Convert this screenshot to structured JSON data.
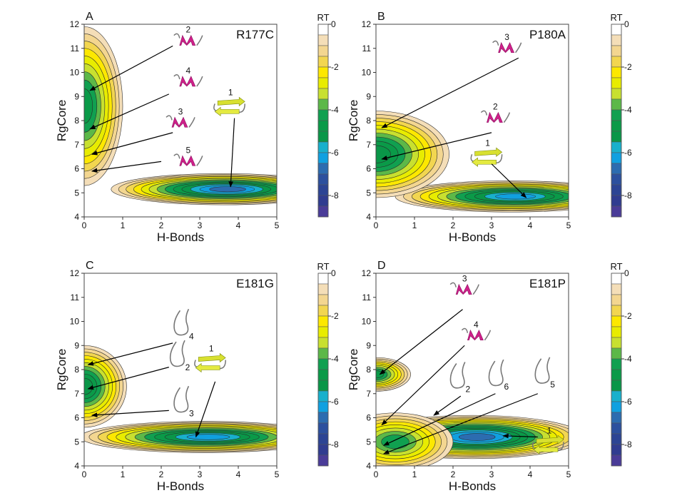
{
  "colorbar": {
    "title": "RT",
    "ticks": [
      0,
      -2,
      -4,
      -6,
      -8
    ],
    "tick_labels": [
      "0",
      "-2",
      "-4",
      "-6",
      "-8"
    ],
    "range": [
      0,
      -9
    ],
    "step": 0.5,
    "colors": [
      "#ffffff",
      "#f4deb8",
      "#f3d690",
      "#f2d650",
      "#fde800",
      "#e8ec00",
      "#c8e030",
      "#5cb848",
      "#10a050",
      "#0a9a48",
      "#0a9648",
      "#18b0cc",
      "#10a0e0",
      "#2c6cb0",
      "#2c509e",
      "#2c4494",
      "#303c90",
      "#4a3c98"
    ]
  },
  "chart_data": [
    {
      "type": "heatmap",
      "panel_letter": "A",
      "title": "R177C",
      "xlabel": "H-Bonds",
      "ylabel": "RgCore",
      "xlim": [
        0,
        5
      ],
      "ylim": [
        4,
        12
      ],
      "xticks": [
        "0",
        "1",
        "2",
        "3",
        "4",
        "5"
      ],
      "yticks": [
        "4",
        "5",
        "6",
        "7",
        "8",
        "9",
        "10",
        "11",
        "12"
      ],
      "basins": [
        {
          "hb": 3.6,
          "rg": 5.15,
          "spread_hb": 2.9,
          "spread_rg": 0.65,
          "min_rt": -6.5
        },
        {
          "hb": 0.0,
          "rg": 8.6,
          "spread_hb": 1.0,
          "spread_rg": 3.3,
          "min_rt": -4.5
        }
      ],
      "structures": [
        {
          "label": "1",
          "kind": "strand",
          "at": [
            3.8,
            8.7
          ],
          "from": [
            3.9,
            8.1
          ],
          "to": [
            3.8,
            5.25
          ]
        },
        {
          "label": "2",
          "kind": "helix",
          "at": [
            2.7,
            11.3
          ],
          "from": [
            2.3,
            11.1
          ],
          "to": [
            0.15,
            9.25
          ]
        },
        {
          "label": "4",
          "kind": "helix",
          "at": [
            2.7,
            9.6
          ],
          "from": [
            2.2,
            9.1
          ],
          "to": [
            0.15,
            7.65
          ]
        },
        {
          "label": "3",
          "kind": "helix",
          "at": [
            2.5,
            7.9
          ],
          "from": [
            2.3,
            7.5
          ],
          "to": [
            0.2,
            6.6
          ]
        },
        {
          "label": "5",
          "kind": "helix",
          "at": [
            2.7,
            6.3
          ],
          "from": [
            2.0,
            6.3
          ],
          "to": [
            0.2,
            5.9
          ]
        }
      ]
    },
    {
      "type": "heatmap",
      "panel_letter": "B",
      "title": "P180A",
      "xlabel": "H-Bonds",
      "ylabel": "RgCore",
      "xlim": [
        0,
        5
      ],
      "ylim": [
        4,
        12
      ],
      "xticks": [
        "0",
        "1",
        "2",
        "3",
        "4",
        "5"
      ],
      "yticks": [
        "4",
        "5",
        "6",
        "7",
        "8",
        "9",
        "10",
        "11",
        "12"
      ],
      "basins": [
        {
          "hb": 3.5,
          "rg": 4.85,
          "spread_hb": 3.0,
          "spread_rg": 0.65,
          "min_rt": -6.0
        },
        {
          "hb": 0.0,
          "rg": 6.6,
          "spread_hb": 1.9,
          "spread_rg": 1.8,
          "min_rt": -5.0
        }
      ],
      "structures": [
        {
          "label": "3",
          "kind": "helix",
          "at": [
            3.4,
            11.0
          ],
          "from": [
            3.7,
            10.6
          ],
          "to": [
            0.15,
            7.7
          ]
        },
        {
          "label": "2",
          "kind": "helix",
          "at": [
            3.1,
            8.1
          ],
          "from": [
            3.0,
            7.5
          ],
          "to": [
            0.15,
            6.4
          ]
        },
        {
          "label": "1",
          "kind": "strand",
          "at": [
            2.9,
            6.6
          ],
          "from": [
            3.0,
            6.2
          ],
          "to": [
            3.9,
            4.8
          ]
        }
      ]
    },
    {
      "type": "heatmap",
      "panel_letter": "C",
      "title": "E181G",
      "xlabel": "H-Bonds",
      "ylabel": "RgCore",
      "xlim": [
        0,
        5
      ],
      "ylim": [
        4,
        12
      ],
      "xticks": [
        "0",
        "1",
        "2",
        "3",
        "4",
        "5"
      ],
      "yticks": [
        "4",
        "5",
        "6",
        "7",
        "8",
        "9",
        "10",
        "11",
        "12"
      ],
      "basins": [
        {
          "hb": 3.1,
          "rg": 5.2,
          "spread_hb": 3.2,
          "spread_rg": 0.65,
          "min_rt": -6.0
        },
        {
          "hb": 0.0,
          "rg": 7.3,
          "spread_hb": 1.1,
          "spread_rg": 1.7,
          "min_rt": -5.0
        }
      ],
      "structures": [
        {
          "label": "4",
          "kind": "coil",
          "at": [
            2.6,
            9.8
          ],
          "from": [
            2.3,
            9.1
          ],
          "to": [
            0.1,
            8.2
          ]
        },
        {
          "label": "2",
          "kind": "coil",
          "at": [
            2.5,
            8.5
          ],
          "from": [
            2.2,
            8.1
          ],
          "to": [
            0.1,
            7.2
          ]
        },
        {
          "label": "3",
          "kind": "coil",
          "at": [
            2.6,
            6.6
          ],
          "from": [
            2.2,
            6.3
          ],
          "to": [
            0.2,
            6.1
          ]
        },
        {
          "label": "1",
          "kind": "strand",
          "at": [
            3.3,
            8.4
          ],
          "from": [
            3.4,
            7.5
          ],
          "to": [
            2.9,
            5.2
          ]
        }
      ]
    },
    {
      "type": "heatmap",
      "panel_letter": "D",
      "title": "E181P",
      "xlabel": "H-Bonds",
      "ylabel": "RgCore",
      "xlim": [
        0,
        5
      ],
      "ylim": [
        4,
        12
      ],
      "xticks": [
        "0",
        "1",
        "2",
        "3",
        "4",
        "5"
      ],
      "yticks": [
        "4",
        "5",
        "6",
        "7",
        "8",
        "9",
        "10",
        "11",
        "12"
      ],
      "basins": [
        {
          "hb": 2.5,
          "rg": 5.2,
          "spread_hb": 2.9,
          "spread_rg": 0.9,
          "min_rt": -6.5
        },
        {
          "hb": 0.0,
          "rg": 7.8,
          "spread_hb": 0.9,
          "spread_rg": 0.7,
          "min_rt": -4.5
        },
        {
          "hb": 0.5,
          "rg": 5.0,
          "spread_hb": 1.5,
          "spread_rg": 1.2,
          "min_rt": -4.0
        }
      ],
      "structures": [
        {
          "label": "3",
          "kind": "helix",
          "at": [
            2.3,
            11.3
          ],
          "from": [
            2.25,
            10.5
          ],
          "to": [
            0.1,
            7.8
          ]
        },
        {
          "label": "4",
          "kind": "helix",
          "at": [
            2.6,
            9.4
          ],
          "from": [
            2.3,
            9.0
          ],
          "to": [
            0.15,
            5.7
          ]
        },
        {
          "label": "2",
          "kind": "coil",
          "at": [
            2.2,
            7.6
          ],
          "from": [
            2.2,
            6.9
          ],
          "to": [
            1.5,
            6.1
          ]
        },
        {
          "label": "6",
          "kind": "coil",
          "at": [
            3.2,
            7.7
          ],
          "from": [
            3.1,
            7.0
          ],
          "to": [
            0.2,
            4.85
          ]
        },
        {
          "label": "5",
          "kind": "coil",
          "at": [
            4.4,
            7.8
          ],
          "from": [
            4.2,
            7.0
          ],
          "to": [
            0.2,
            4.5
          ]
        },
        {
          "label": "1",
          "kind": "strand",
          "at": [
            4.5,
            5.0
          ],
          "from": [
            4.2,
            5.2
          ],
          "to": [
            3.3,
            5.25
          ]
        }
      ]
    }
  ]
}
